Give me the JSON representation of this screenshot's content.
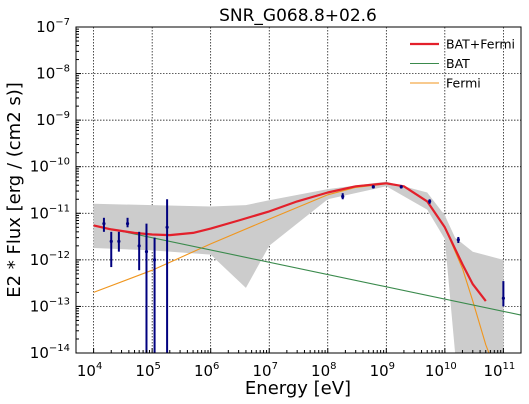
{
  "chart_data": {
    "type": "line",
    "title": "SNR_G068.8+02.6",
    "xlabel": "Energy [eV]",
    "ylabel": "E2 * Flux [erg / (cm2 s)]",
    "xscale": "log",
    "yscale": "log",
    "xlim": [
      5000,
      200000000000
    ],
    "ylim": [
      1e-14,
      1e-07
    ],
    "grid": true,
    "legend_position": "top-right",
    "x_ticks": [
      10000,
      100000,
      1000000,
      10000000,
      100000000,
      1000000000,
      10000000000,
      100000000000
    ],
    "x_tick_labels": [
      {
        "base": "10",
        "exp": "4"
      },
      {
        "base": "10",
        "exp": "5"
      },
      {
        "base": "10",
        "exp": "6"
      },
      {
        "base": "10",
        "exp": "7"
      },
      {
        "base": "10",
        "exp": "8"
      },
      {
        "base": "10",
        "exp": "9"
      },
      {
        "base": "10",
        "exp": "10"
      },
      {
        "base": "10",
        "exp": "11"
      }
    ],
    "y_ticks": [
      1e-14,
      1e-13,
      1e-12,
      1e-11,
      1e-10,
      1e-09,
      1e-08,
      1e-07
    ],
    "y_tick_labels": [
      {
        "base": "10",
        "exp": "−14"
      },
      {
        "base": "10",
        "exp": "−13"
      },
      {
        "base": "10",
        "exp": "−12"
      },
      {
        "base": "10",
        "exp": "−11"
      },
      {
        "base": "10",
        "exp": "−10"
      },
      {
        "base": "10",
        "exp": "−9"
      },
      {
        "base": "10",
        "exp": "−8"
      },
      {
        "base": "10",
        "exp": "−7"
      }
    ],
    "series": [
      {
        "name": "BAT+Fermi",
        "color": "#e3202b",
        "x": [
          10000,
          20000,
          50000,
          100000,
          200000,
          500000,
          1000000,
          3000000,
          10000000,
          30000000,
          100000000,
          300000000,
          1000000000,
          2000000000,
          5000000000,
          10000000000,
          20000000000,
          30000000000,
          50000000000
        ],
        "y": [
          5.5e-12,
          4.5e-12,
          3.8e-12,
          3.5e-12,
          3.4e-12,
          3.8e-12,
          4.7e-12,
          7e-12,
          1.1e-11,
          1.8e-11,
          2.8e-11,
          3.8e-11,
          4.4e-11,
          3.8e-11,
          1.8e-11,
          5e-12,
          8e-13,
          3e-13,
          1.3e-13
        ]
      },
      {
        "name": "BAT",
        "color": "#3a8a4c",
        "x": [
          10000,
          200000000000
        ],
        "y": [
          5.5e-12,
          6.5e-14
        ]
      },
      {
        "name": "Fermi",
        "color": "#f0961e",
        "x": [
          10000,
          100000,
          1000000,
          10000000,
          100000000,
          300000000,
          1000000000,
          2000000000,
          5000000000,
          10000000000,
          20000000000,
          30000000000,
          50000000000,
          70000000000
        ],
        "y": [
          2e-13,
          6e-13,
          2.2e-12,
          7.5e-12,
          2.5e-11,
          3.6e-11,
          4.3e-11,
          3.8e-11,
          1.8e-11,
          5e-12,
          6.5e-13,
          1.3e-13,
          1.5e-14,
          5e-15
        ]
      }
    ],
    "uncertainty_band": {
      "color": "#cccccc",
      "x": [
        10000,
        100000,
        1000000,
        4000000,
        10000000,
        100000000,
        1000000000,
        5000000000,
        10000000000,
        15000000000,
        30000000000,
        100000000000
      ],
      "upper": [
        1.6e-11,
        1.5e-11,
        1.4e-11,
        1.5e-11,
        1.9e-11,
        3.3e-11,
        4.8e-11,
        2.8e-11,
        9e-12,
        3e-12,
        1.5e-12,
        1e-12
      ],
      "lower": [
        1.8e-12,
        1.6e-12,
        1.3e-12,
        2.5e-13,
        2e-12,
        2e-11,
        3.8e-11,
        1.2e-11,
        2.8e-12,
        1e-14,
        1e-14,
        1e-14
      ]
    },
    "data_points": {
      "color": "#00007f",
      "points": [
        {
          "x": 15000,
          "y": 6e-12,
          "lo": 4e-12,
          "hi": 8e-12
        },
        {
          "x": 20000,
          "y": 2.5e-12,
          "lo": 7e-13,
          "hi": 4e-12
        },
        {
          "x": 27000,
          "y": 2.5e-12,
          "lo": 1.5e-12,
          "hi": 4e-12
        },
        {
          "x": 38000,
          "y": 6e-12,
          "lo": 5e-12,
          "hi": 8e-12
        },
        {
          "x": 60000,
          "y": 2e-12,
          "lo": 6e-13,
          "hi": 4e-12
        },
        {
          "x": 80000,
          "y": 1.5e-12,
          "lo": 1e-14,
          "hi": 6e-12
        },
        {
          "x": 110000,
          "y": 1e-12,
          "lo": 1e-14,
          "hi": 3e-12
        },
        {
          "x": 180000,
          "y": 5e-12,
          "lo": 1e-14,
          "hi": 2e-11
        },
        {
          "x": 180000000,
          "y": 2.3e-11,
          "lo": 2e-11,
          "hi": 2.7e-11
        },
        {
          "x": 600000000,
          "y": 3.7e-11,
          "lo": 3.4e-11,
          "hi": 4e-11
        },
        {
          "x": 1800000000,
          "y": 3.7e-11,
          "lo": 3.4e-11,
          "hi": 4e-11
        },
        {
          "x": 5500000000,
          "y": 1.8e-11,
          "lo": 1.6e-11,
          "hi": 2e-11
        },
        {
          "x": 17000000000,
          "y": 2.7e-12,
          "lo": 2.3e-12,
          "hi": 3.1e-12
        },
        {
          "x": 100000000000,
          "y": 1.5e-13,
          "lo": 1e-13,
          "hi": 3.5e-13
        }
      ]
    }
  }
}
